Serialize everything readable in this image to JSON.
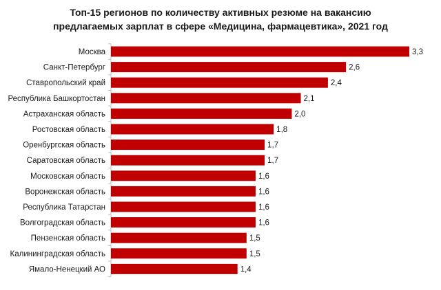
{
  "title_line1": "Топ-15 регионов по количеству активных резюме на вакансию",
  "title_line2": "предлагаемых зарплат в сфере «Медицина, фармацевтика», 2021 год",
  "chart_data": {
    "type": "bar",
    "orientation": "horizontal",
    "title": "Топ-15 регионов по количеству активных резюме на вакансию предлагаемых зарплат в сфере «Медицина, фармацевтика», 2021 год",
    "categories": [
      "Москва",
      "Санкт-Петербург",
      "Ставропольский край",
      "Республика Башкортостан",
      "Астраханская область",
      "Ростовская область",
      "Оренбургская область",
      "Саратовская область",
      "Московская область",
      "Воронежская область",
      "Республика Татарстан",
      "Волгоградская область",
      "Пензенская область",
      "Калининградская область",
      "Ямало-Ненецкий АО"
    ],
    "values": [
      3.3,
      2.6,
      2.4,
      2.1,
      2.0,
      1.8,
      1.7,
      1.7,
      1.6,
      1.6,
      1.6,
      1.6,
      1.5,
      1.5,
      1.4
    ],
    "value_labels": [
      "3,3",
      "2,6",
      "2,4",
      "2,1",
      "2,0",
      "1,8",
      "1,7",
      "1,7",
      "1,6",
      "1,6",
      "1,6",
      "1,6",
      "1,5",
      "1,5",
      "1,4"
    ],
    "xlim": [
      0,
      3.3
    ],
    "grid": false,
    "legend": "none",
    "bar_color": "#c00000",
    "axis_color": "#bfbfbf"
  }
}
